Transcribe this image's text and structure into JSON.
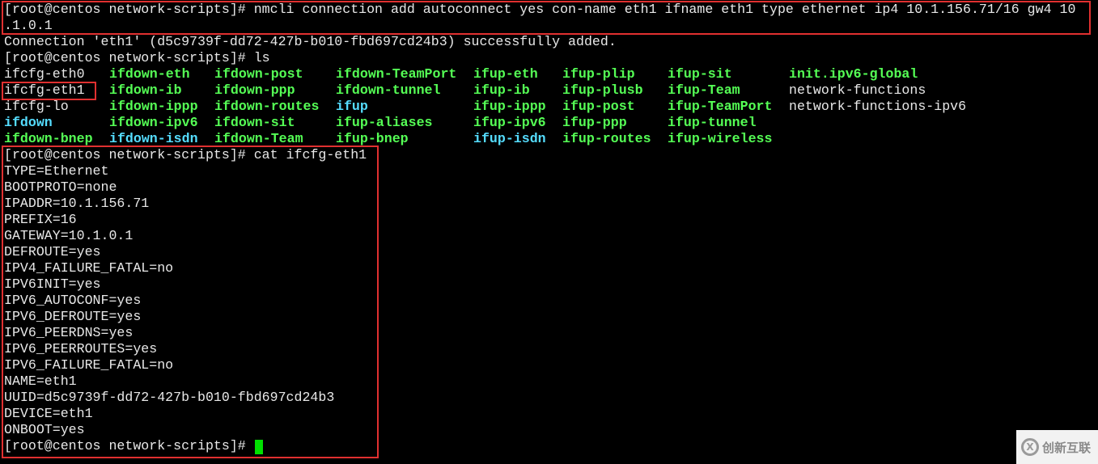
{
  "terminal": {
    "lines_before": [
      "[root@centos network-scripts]# nmcli connection add autoconnect yes con-name eth1 ifname eth1 type ethernet ip4 10.1.156.71/16 gw4 10",
      ".1.0.1",
      "Connection 'eth1' (d5c9739f-dd72-427b-b010-fbd697cd24b3) successfully added.",
      "[root@centos network-scripts]# ls"
    ],
    "ls_columns": [
      [
        {
          "t": "ifcfg-eth0",
          "c": "plain"
        },
        {
          "t": "ifcfg-eth1",
          "c": "plain"
        },
        {
          "t": "ifcfg-lo",
          "c": "plain"
        },
        {
          "t": "ifdown",
          "c": "dir"
        },
        {
          "t": "ifdown-bnep",
          "c": "exec"
        }
      ],
      [
        {
          "t": "ifdown-eth",
          "c": "exec"
        },
        {
          "t": "ifdown-ib",
          "c": "exec"
        },
        {
          "t": "ifdown-ippp",
          "c": "exec"
        },
        {
          "t": "ifdown-ipv6",
          "c": "exec"
        },
        {
          "t": "ifdown-isdn",
          "c": "dir"
        }
      ],
      [
        {
          "t": "ifdown-post",
          "c": "exec"
        },
        {
          "t": "ifdown-ppp",
          "c": "exec"
        },
        {
          "t": "ifdown-routes",
          "c": "exec"
        },
        {
          "t": "ifdown-sit",
          "c": "exec"
        },
        {
          "t": "ifdown-Team",
          "c": "exec"
        }
      ],
      [
        {
          "t": "ifdown-TeamPort",
          "c": "exec"
        },
        {
          "t": "ifdown-tunnel",
          "c": "exec"
        },
        {
          "t": "ifup",
          "c": "dir"
        },
        {
          "t": "ifup-aliases",
          "c": "exec"
        },
        {
          "t": "ifup-bnep",
          "c": "exec"
        }
      ],
      [
        {
          "t": "ifup-eth",
          "c": "exec"
        },
        {
          "t": "ifup-ib",
          "c": "exec"
        },
        {
          "t": "ifup-ippp",
          "c": "exec"
        },
        {
          "t": "ifup-ipv6",
          "c": "exec"
        },
        {
          "t": "ifup-isdn",
          "c": "dir"
        }
      ],
      [
        {
          "t": "ifup-plip",
          "c": "exec"
        },
        {
          "t": "ifup-plusb",
          "c": "exec"
        },
        {
          "t": "ifup-post",
          "c": "exec"
        },
        {
          "t": "ifup-ppp",
          "c": "exec"
        },
        {
          "t": "ifup-routes",
          "c": "exec"
        }
      ],
      [
        {
          "t": "ifup-sit",
          "c": "exec"
        },
        {
          "t": "ifup-Team",
          "c": "exec"
        },
        {
          "t": "ifup-TeamPort",
          "c": "exec"
        },
        {
          "t": "ifup-tunnel",
          "c": "exec"
        },
        {
          "t": "ifup-wireless",
          "c": "exec"
        }
      ],
      [
        {
          "t": "init.ipv6-global",
          "c": "exec"
        },
        {
          "t": "network-functions",
          "c": "plain"
        },
        {
          "t": "network-functions-ipv6",
          "c": "plain"
        }
      ]
    ],
    "lines_after": [
      "[root@centos network-scripts]# cat ifcfg-eth1",
      "TYPE=Ethernet",
      "BOOTPROTO=none",
      "IPADDR=10.1.156.71",
      "PREFIX=16",
      "GATEWAY=10.1.0.1",
      "DEFROUTE=yes",
      "IPV4_FAILURE_FATAL=no",
      "IPV6INIT=yes",
      "IPV6_AUTOCONF=yes",
      "IPV6_DEFROUTE=yes",
      "IPV6_PEERDNS=yes",
      "IPV6_PEERROUTES=yes",
      "IPV6_FAILURE_FATAL=no",
      "NAME=eth1",
      "UUID=d5c9739f-dd72-427b-b010-fbd697cd24b3",
      "DEVICE=eth1",
      "ONBOOT=yes",
      "[root@centos network-scripts]# "
    ]
  },
  "colors": {
    "background": "#000000",
    "text": "#e8e8e8",
    "executable": "#55ff55",
    "directory_link": "#55ddff",
    "highlight_box": "#e03030",
    "cursor": "#00e000"
  },
  "watermark": {
    "text": "创新互联",
    "icon": "logo-icon"
  }
}
